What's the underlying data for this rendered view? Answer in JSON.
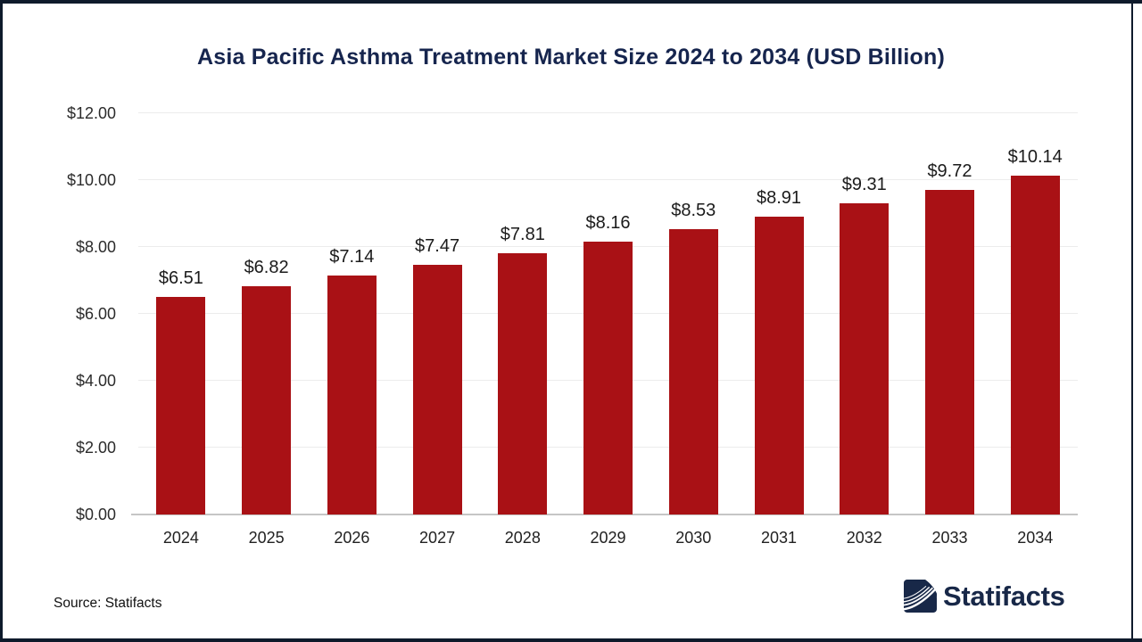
{
  "page": {
    "background": "#ffffff",
    "frame_border_color": "#0e1a2b"
  },
  "chart_data": {
    "type": "bar",
    "title": "Asia Pacific Asthma Treatment Market Size 2024 to 2034 (USD Billion)",
    "title_color": "#16254e",
    "categories": [
      "2024",
      "2025",
      "2026",
      "2027",
      "2028",
      "2029",
      "2030",
      "2031",
      "2032",
      "2033",
      "2034"
    ],
    "values": [
      6.51,
      6.82,
      7.14,
      7.47,
      7.81,
      8.16,
      8.53,
      8.91,
      9.31,
      9.72,
      10.14
    ],
    "data_labels": [
      "$6.51",
      "$6.82",
      "$7.14",
      "$7.47",
      "$7.81",
      "$8.16",
      "$8.53",
      "$8.91",
      "$9.31",
      "$9.72",
      "$10.14"
    ],
    "xlabel": "",
    "ylabel": "",
    "ylim": [
      0,
      12
    ],
    "y_tick_step": 2,
    "y_tick_labels": [
      "$0.00",
      "$2.00",
      "$4.00",
      "$6.00",
      "$8.00",
      "$10.00",
      "$12.00"
    ],
    "grid": true,
    "gridline_color": "#ececec",
    "axis_line_color": "#c6c6c6",
    "bar_color": "#a91115",
    "legend": "none",
    "unit": "USD Billion"
  },
  "footer": {
    "source": "Source: Statifacts",
    "logo_text": "Statifacts",
    "logo_color": "#182848"
  }
}
